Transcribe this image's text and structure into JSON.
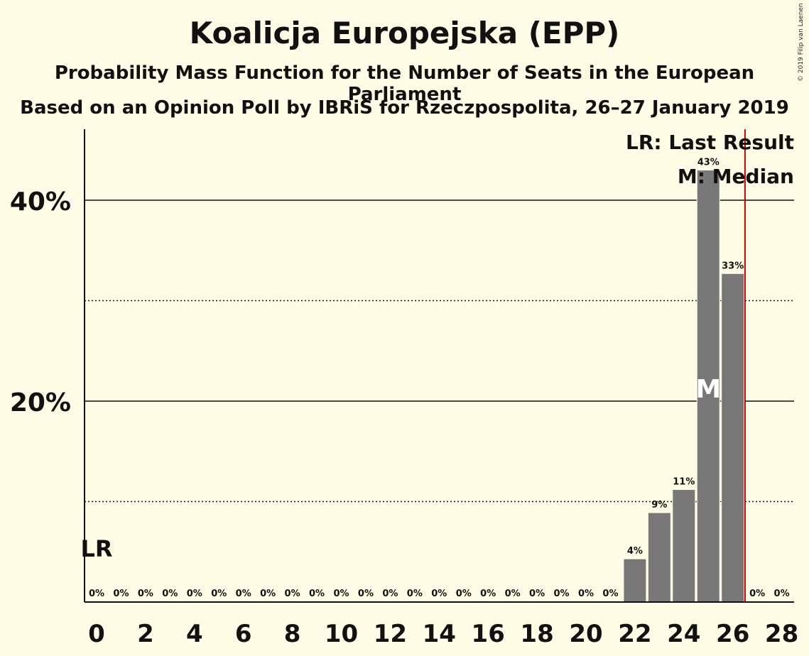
{
  "title": "Koalicja Europejska (EPP)",
  "subtitle1": "Probability Mass Function for the Number of Seats in the European Parliament",
  "subtitle2": "Based on an Opinion Poll by IBRiS for Rzeczpospolita, 26–27 January 2019",
  "copyright": "© 2019 Filip van Laenen",
  "legend": {
    "last_result": "LR: Last Result",
    "median": "M: Median"
  },
  "markers": {
    "last_result_label": "LR",
    "last_result_seat": 0,
    "median_label": "M",
    "median_seat": 25,
    "majority_line_seat": 26.5
  },
  "colors": {
    "background": "#fffde6",
    "bar": "#787878",
    "majority_line": "#cc0000",
    "text": "#111111"
  },
  "chart_data": {
    "type": "bar",
    "categories": [
      0,
      1,
      2,
      3,
      4,
      5,
      6,
      7,
      8,
      9,
      10,
      11,
      12,
      13,
      14,
      15,
      16,
      17,
      18,
      19,
      20,
      21,
      22,
      23,
      24,
      25,
      26,
      27,
      28
    ],
    "values": [
      0,
      0,
      0,
      0,
      0,
      0,
      0,
      0,
      0,
      0,
      0,
      0,
      0,
      0,
      0,
      0,
      0,
      0,
      0,
      0,
      0,
      0,
      4.3,
      8.9,
      11.2,
      43,
      32.7,
      0,
      0
    ],
    "value_labels": [
      "0%",
      "0%",
      "0%",
      "0%",
      "0%",
      "0%",
      "0%",
      "0%",
      "0%",
      "0%",
      "0%",
      "0%",
      "0%",
      "0%",
      "0%",
      "0%",
      "0%",
      "0%",
      "0%",
      "0%",
      "0%",
      "0%",
      "4%",
      "9%",
      "11%",
      "43%",
      "33%",
      "0%",
      "0%"
    ],
    "x_ticks": [
      0,
      2,
      4,
      6,
      8,
      10,
      12,
      14,
      16,
      18,
      20,
      22,
      24,
      26,
      28
    ],
    "y_ticks": [
      {
        "value": 20,
        "label": "20%"
      },
      {
        "value": 40,
        "label": "40%"
      }
    ],
    "y_minor_gridlines": [
      10,
      30
    ],
    "ylim": [
      0,
      47
    ],
    "xlim": [
      -0.5,
      28.5
    ],
    "grid": true,
    "legend_position": "top-right"
  }
}
